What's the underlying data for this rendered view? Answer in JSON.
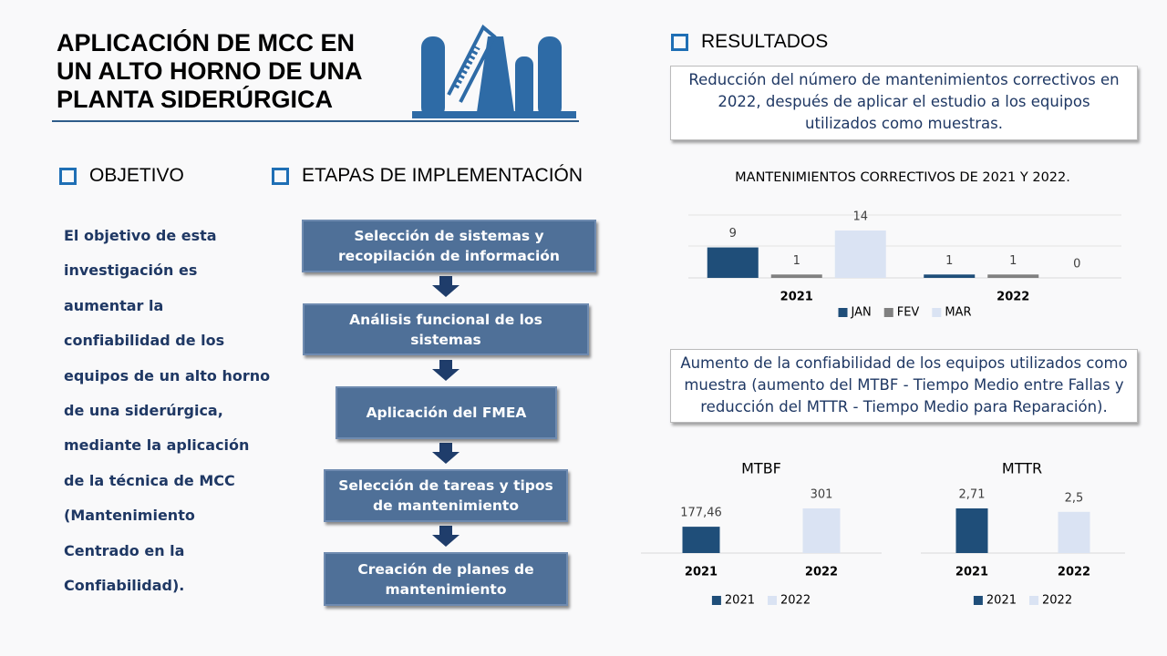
{
  "header": {
    "title_lines": [
      "APLICACIÓN  DE MCC EN",
      "UN ALTO HORNO DE UNA",
      "PLANTA SIDERÚRGICA"
    ]
  },
  "objective": {
    "heading": "OBJETIVO",
    "lines": [
      "El objetivo de esta",
      "investigación es",
      "aumentar la",
      "confiabilidad  de los",
      "equipos de un alto horno",
      "de una siderúrgica,",
      "mediante la aplicación",
      "de la técnica de MCC",
      "(Mantenimiento",
      "Centrado  en la",
      "Confiabilidad)."
    ]
  },
  "stages": {
    "heading": "ETAPAS DE IMPLEMENTACIÓN",
    "steps": [
      "Selección de sistemas y recopilación de información",
      "Análisis funcional de los sistemas",
      "Aplicación del FMEA",
      "Selección de tareas y tipos de mantenimiento",
      "Creación de planes de mantenimiento"
    ]
  },
  "results": {
    "heading": "RESULTADOS",
    "summary_1": "Reducción del número de mantenimientos correctivos en 2022, después de aplicar el estudio a los equipos utilizados como muestras.",
    "summary_2": "Aumento de la confiabilidad de los equipos utilizados como muestra (aumento del MTBF - Tiempo Medio entre Fallas y reducción del MTTR - Tiempo Medio para Reparación)."
  },
  "chart_data": [
    {
      "type": "bar",
      "title": "MANTENIMIENTOS CORRECTIVOS DE 2021 Y 2022.",
      "categories": [
        "2021",
        "2022"
      ],
      "series": [
        {
          "name": "JAN",
          "color": "#1f4e79",
          "values": [
            9,
            1
          ]
        },
        {
          "name": "FEV",
          "color": "#808080",
          "values": [
            1,
            1
          ]
        },
        {
          "name": "MAR",
          "color": "#dae3f3",
          "values": [
            14,
            0
          ]
        }
      ],
      "legend": "bottom"
    },
    {
      "type": "bar",
      "title": "MTBF",
      "categories": [
        "2021",
        "2022"
      ],
      "values": [
        177.46,
        301
      ],
      "value_labels": [
        "177,46",
        "301"
      ],
      "colors": [
        "#1f4e79",
        "#dae3f3"
      ],
      "legend": "bottom"
    },
    {
      "type": "bar",
      "title": "MTTR",
      "categories": [
        "2021",
        "2022"
      ],
      "values": [
        2.71,
        2.5
      ],
      "value_labels": [
        "2,71",
        "2,5"
      ],
      "colors": [
        "#1f4e79",
        "#dae3f3"
      ],
      "legend": "bottom"
    }
  ]
}
